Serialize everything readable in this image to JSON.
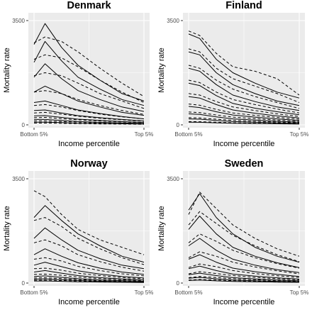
{
  "chart_data": [
    {
      "type": "line",
      "title": "Denmark",
      "xlabel": "Income percentile",
      "ylabel": "Mortality rate",
      "x_tick_labels": [
        "Bottom 5%",
        "Top 5%"
      ],
      "y_ticks": [
        0,
        3500
      ],
      "ylim": [
        0,
        3500
      ],
      "grid": true,
      "background": "#ebebeb",
      "line_styles": [
        "solid",
        "dashed"
      ],
      "x": [
        0,
        0.1,
        0.25,
        0.4,
        0.6,
        0.8,
        1.0
      ],
      "series": [
        {
          "style": "solid",
          "values": [
            2700,
            3400,
            2600,
            2000,
            1500,
            1050,
            800
          ]
        },
        {
          "style": "dashed",
          "values": [
            2750,
            2950,
            2800,
            2450,
            1900,
            1400,
            950
          ]
        },
        {
          "style": "solid",
          "values": [
            2100,
            2800,
            2150,
            1600,
            1200,
            850,
            650
          ]
        },
        {
          "style": "dashed",
          "values": [
            2200,
            2350,
            2250,
            1950,
            1500,
            1100,
            750
          ]
        },
        {
          "style": "solid",
          "values": [
            1600,
            2050,
            1550,
            1150,
            850,
            600,
            450
          ]
        },
        {
          "style": "dashed",
          "values": [
            1650,
            1750,
            1650,
            1400,
            1050,
            800,
            550
          ]
        },
        {
          "style": "solid",
          "values": [
            1100,
            1300,
            1050,
            800,
            600,
            420,
            320
          ]
        },
        {
          "style": "dashed",
          "values": [
            1100,
            1150,
            1050,
            850,
            650,
            480,
            350
          ]
        },
        {
          "style": "solid",
          "values": [
            750,
            800,
            650,
            500,
            380,
            280,
            200
          ]
        },
        {
          "style": "dashed",
          "values": [
            650,
            680,
            600,
            480,
            360,
            270,
            200
          ]
        },
        {
          "style": "solid",
          "values": [
            480,
            500,
            400,
            310,
            240,
            180,
            130
          ]
        },
        {
          "style": "dashed",
          "values": [
            400,
            420,
            360,
            290,
            220,
            170,
            120
          ]
        },
        {
          "style": "solid",
          "values": [
            300,
            310,
            250,
            190,
            150,
            110,
            80
          ]
        },
        {
          "style": "dashed",
          "values": [
            240,
            250,
            210,
            170,
            130,
            100,
            70
          ]
        },
        {
          "style": "solid",
          "values": [
            180,
            180,
            150,
            110,
            85,
            65,
            45
          ]
        },
        {
          "style": "dashed",
          "values": [
            130,
            130,
            110,
            90,
            70,
            55,
            40
          ]
        },
        {
          "style": "solid",
          "values": [
            90,
            90,
            75,
            55,
            45,
            35,
            25
          ]
        },
        {
          "style": "dashed",
          "values": [
            60,
            60,
            50,
            40,
            32,
            26,
            20
          ]
        }
      ]
    },
    {
      "type": "line",
      "title": "Finland",
      "xlabel": "Income percentile",
      "ylabel": "Mortality rate",
      "x_tick_labels": [
        "Bottom 5%",
        "Top 5%"
      ],
      "y_ticks": [
        0,
        3500
      ],
      "ylim": [
        0,
        3500
      ],
      "grid": true,
      "background": "#ebebeb",
      "line_styles": [
        "solid",
        "dashed"
      ],
      "x": [
        0,
        0.1,
        0.25,
        0.4,
        0.6,
        0.8,
        1.0
      ],
      "series": [
        {
          "style": "dashed",
          "values": [
            3150,
            3000,
            2400,
            1950,
            1800,
            1550,
            1000
          ]
        },
        {
          "style": "solid",
          "values": [
            3050,
            2900,
            2200,
            1750,
            1400,
            1100,
            900
          ]
        },
        {
          "style": "dashed",
          "values": [
            2550,
            2450,
            1900,
            1550,
            1300,
            1050,
            750
          ]
        },
        {
          "style": "solid",
          "values": [
            2450,
            2350,
            1750,
            1350,
            1050,
            800,
            650
          ]
        },
        {
          "style": "dashed",
          "values": [
            2000,
            1900,
            1500,
            1200,
            950,
            750,
            550
          ]
        },
        {
          "style": "solid",
          "values": [
            1900,
            1800,
            1350,
            1000,
            780,
            600,
            480
          ]
        },
        {
          "style": "dashed",
          "values": [
            1500,
            1420,
            1100,
            850,
            680,
            530,
            400
          ]
        },
        {
          "style": "solid",
          "values": [
            1400,
            1320,
            980,
            720,
            560,
            440,
            340
          ]
        },
        {
          "style": "dashed",
          "values": [
            1050,
            1000,
            780,
            600,
            480,
            370,
            280
          ]
        },
        {
          "style": "solid",
          "values": [
            950,
            900,
            680,
            500,
            390,
            300,
            230
          ]
        },
        {
          "style": "dashed",
          "values": [
            700,
            660,
            520,
            400,
            320,
            250,
            190
          ]
        },
        {
          "style": "solid",
          "values": [
            620,
            580,
            440,
            330,
            260,
            200,
            150
          ]
        },
        {
          "style": "dashed",
          "values": [
            430,
            410,
            330,
            260,
            210,
            160,
            120
          ]
        },
        {
          "style": "solid",
          "values": [
            370,
            350,
            270,
            200,
            160,
            120,
            90
          ]
        },
        {
          "style": "dashed",
          "values": [
            240,
            230,
            190,
            150,
            120,
            95,
            70
          ]
        },
        {
          "style": "solid",
          "values": [
            200,
            190,
            150,
            110,
            90,
            70,
            50
          ]
        },
        {
          "style": "dashed",
          "values": [
            110,
            105,
            90,
            70,
            58,
            45,
            35
          ]
        },
        {
          "style": "solid",
          "values": [
            90,
            85,
            70,
            55,
            45,
            35,
            25
          ]
        }
      ]
    },
    {
      "type": "line",
      "title": "Norway",
      "xlabel": "Income percentile",
      "ylabel": "Mortality rate",
      "x_tick_labels": [
        "Bottom 5%",
        "Top 5%"
      ],
      "y_ticks": [
        0,
        3500
      ],
      "ylim": [
        0,
        3500
      ],
      "grid": true,
      "background": "#ebebeb",
      "line_styles": [
        "solid",
        "dashed"
      ],
      "x": [
        0,
        0.1,
        0.25,
        0.4,
        0.6,
        0.8,
        1.0
      ],
      "series": [
        {
          "style": "dashed",
          "values": [
            3100,
            2900,
            2300,
            1800,
            1450,
            1200,
            950
          ]
        },
        {
          "style": "solid",
          "values": [
            2200,
            2600,
            2100,
            1650,
            1250,
            900,
            700
          ]
        },
        {
          "style": "dashed",
          "values": [
            2100,
            2200,
            1900,
            1500,
            1150,
            850,
            620
          ]
        },
        {
          "style": "solid",
          "values": [
            1500,
            1850,
            1450,
            1100,
            820,
            600,
            480
          ]
        },
        {
          "style": "dashed",
          "values": [
            1350,
            1450,
            1250,
            950,
            720,
            530,
            400
          ]
        },
        {
          "style": "solid",
          "values": [
            950,
            1150,
            900,
            680,
            500,
            370,
            290
          ]
        },
        {
          "style": "dashed",
          "values": [
            800,
            850,
            740,
            560,
            420,
            310,
            240
          ]
        },
        {
          "style": "solid",
          "values": [
            600,
            700,
            550,
            410,
            300,
            220,
            170
          ]
        },
        {
          "style": "dashed",
          "values": [
            480,
            500,
            430,
            330,
            250,
            185,
            140
          ]
        },
        {
          "style": "solid",
          "values": [
            370,
            420,
            330,
            250,
            180,
            135,
            100
          ]
        },
        {
          "style": "dashed",
          "values": [
            290,
            300,
            260,
            200,
            150,
            110,
            85
          ]
        },
        {
          "style": "solid",
          "values": [
            220,
            240,
            190,
            145,
            105,
            80,
            60
          ]
        },
        {
          "style": "dashed",
          "values": [
            170,
            175,
            150,
            115,
            88,
            66,
            50
          ]
        },
        {
          "style": "solid",
          "values": [
            130,
            140,
            110,
            85,
            62,
            46,
            35
          ]
        },
        {
          "style": "dashed",
          "values": [
            95,
            98,
            85,
            66,
            50,
            38,
            28
          ]
        },
        {
          "style": "solid",
          "values": [
            70,
            72,
            58,
            44,
            33,
            25,
            18
          ]
        }
      ]
    },
    {
      "type": "line",
      "title": "Sweden",
      "xlabel": "Income percentile",
      "ylabel": "Mortality rate",
      "x_tick_labels": [
        "Bottom 5%",
        "Top 5%"
      ],
      "y_ticks": [
        0,
        3500
      ],
      "ylim": [
        0,
        3500
      ],
      "grid": true,
      "background": "#ebebeb",
      "line_styles": [
        "solid",
        "dashed"
      ],
      "x": [
        0,
        0.1,
        0.25,
        0.4,
        0.6,
        0.8,
        1.0
      ],
      "series": [
        {
          "style": "dashed",
          "values": [
            2300,
            3050,
            2500,
            1950,
            1500,
            1150,
            900
          ]
        },
        {
          "style": "solid",
          "values": [
            2450,
            3000,
            2200,
            1650,
            1200,
            900,
            700
          ]
        },
        {
          "style": "dashed",
          "values": [
            1950,
            2400,
            2000,
            1600,
            1250,
            950,
            720
          ]
        },
        {
          "style": "solid",
          "values": [
            1800,
            2250,
            1650,
            1200,
            900,
            680,
            520
          ]
        },
        {
          "style": "dashed",
          "values": [
            1350,
            1650,
            1400,
            1100,
            850,
            650,
            500
          ]
        },
        {
          "style": "solid",
          "values": [
            1250,
            1500,
            1100,
            800,
            600,
            450,
            350
          ]
        },
        {
          "style": "dashed",
          "values": [
            850,
            1050,
            900,
            700,
            540,
            410,
            310
          ]
        },
        {
          "style": "solid",
          "values": [
            800,
            950,
            700,
            500,
            380,
            290,
            220
          ]
        },
        {
          "style": "dashed",
          "values": [
            520,
            640,
            550,
            420,
            320,
            245,
            185
          ]
        },
        {
          "style": "solid",
          "values": [
            480,
            570,
            420,
            300,
            230,
            175,
            130
          ]
        },
        {
          "style": "dashed",
          "values": [
            310,
            380,
            320,
            250,
            190,
            145,
            110
          ]
        },
        {
          "style": "solid",
          "values": [
            280,
            330,
            250,
            180,
            135,
            100,
            78
          ]
        },
        {
          "style": "dashed",
          "values": [
            180,
            220,
            185,
            145,
            110,
            85,
            65
          ]
        },
        {
          "style": "solid",
          "values": [
            160,
            190,
            140,
            100,
            78,
            58,
            45
          ]
        },
        {
          "style": "dashed",
          "values": [
            100,
            120,
            100,
            80,
            62,
            48,
            36
          ]
        },
        {
          "style": "solid",
          "values": [
            85,
            100,
            75,
            55,
            42,
            32,
            24
          ]
        }
      ]
    }
  ]
}
